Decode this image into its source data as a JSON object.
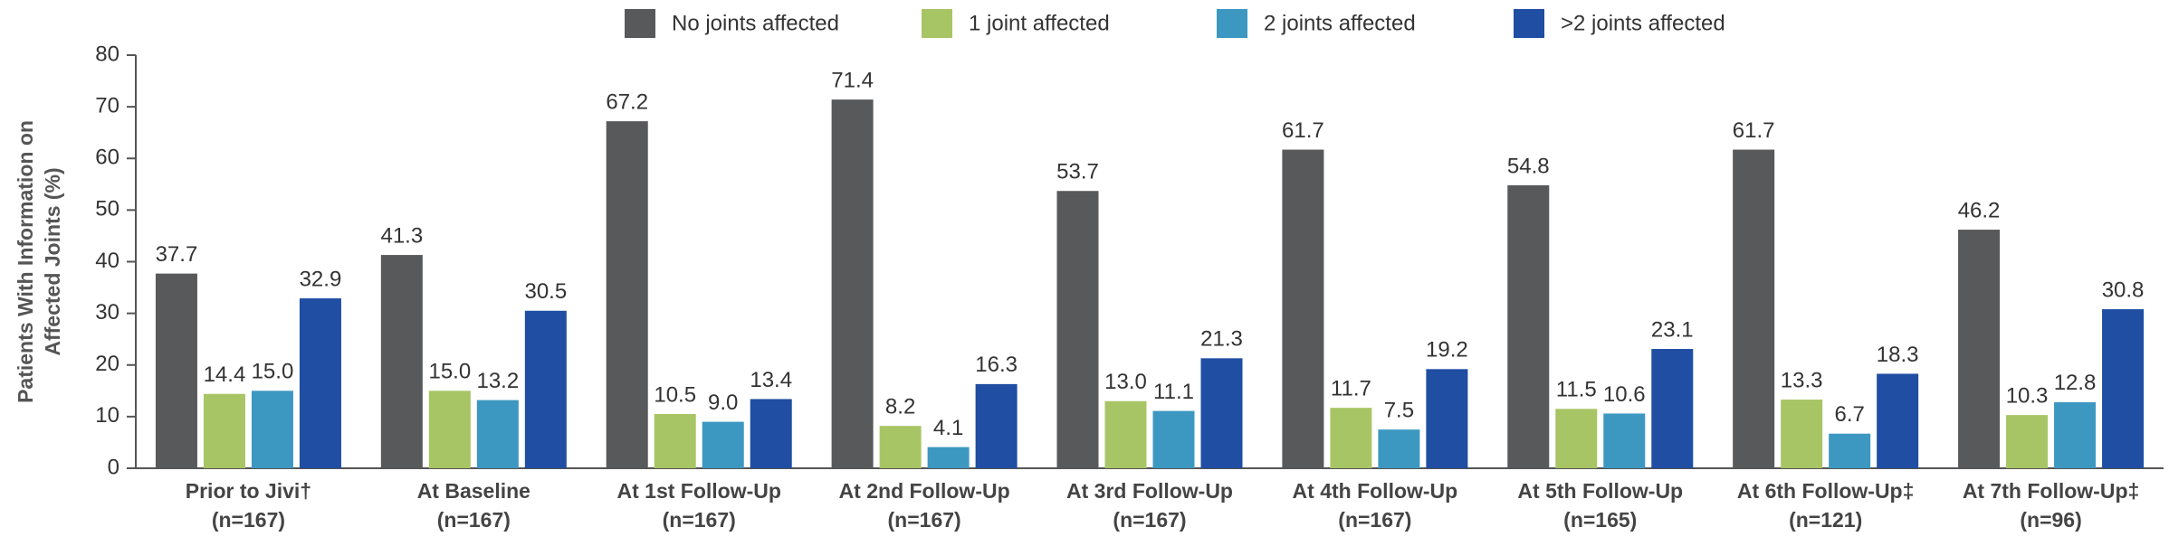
{
  "chart_data": {
    "type": "bar",
    "ylabel": [
      "Patients With Information on",
      "Affected Joints (%)"
    ],
    "categories": [
      [
        "Prior to Jivi†",
        "(n=167)"
      ],
      [
        "At Baseline",
        "(n=167)"
      ],
      [
        "At 1st Follow-Up",
        "(n=167)"
      ],
      [
        "At 2nd Follow-Up",
        "(n=167)"
      ],
      [
        "At 3rd Follow-Up",
        "(n=167)"
      ],
      [
        "At 4th Follow-Up",
        "(n=167)"
      ],
      [
        "At 5th Follow-Up",
        "(n=165)"
      ],
      [
        "At 6th Follow-Up‡",
        "(n=121)"
      ],
      [
        "At 7th Follow-Up‡",
        "(n=96)"
      ]
    ],
    "series": [
      {
        "name": "No joints affected",
        "color": "#58595b",
        "values": [
          37.7,
          41.3,
          67.2,
          71.4,
          53.7,
          61.7,
          54.8,
          61.7,
          46.2
        ],
        "value_labels": [
          "37.7",
          "41.3",
          "67.2",
          "71.4",
          "53.7",
          "61.7",
          "54.8",
          "61.7",
          "46.2"
        ]
      },
      {
        "name": "1 joint affected",
        "color": "#a8c565",
        "values": [
          14.4,
          15.0,
          10.5,
          8.2,
          13.0,
          11.7,
          11.5,
          13.3,
          10.3
        ],
        "value_labels": [
          "14.4",
          "15.0",
          "10.5",
          "8.2",
          "13.0",
          "11.7",
          "11.5",
          "13.3",
          "10.3"
        ]
      },
      {
        "name": "2 joints affected",
        "color": "#3d98c1",
        "values": [
          15.0,
          13.2,
          9.0,
          4.1,
          11.1,
          7.5,
          10.6,
          6.7,
          12.8
        ],
        "value_labels": [
          "15.0",
          "13.2",
          "9.0",
          "4.1",
          "11.1",
          "7.5",
          "10.6",
          "6.7",
          "12.8"
        ]
      },
      {
        "name": ">2 joints affected",
        "color": "#1f4ea3",
        "values": [
          32.9,
          30.5,
          13.4,
          16.3,
          21.3,
          19.2,
          23.1,
          18.3,
          30.8
        ],
        "value_labels": [
          "32.9",
          "30.5",
          "13.4",
          "16.3",
          "21.3",
          "19.2",
          "23.1",
          "18.3",
          "30.8"
        ]
      }
    ],
    "ylim": [
      0,
      80
    ],
    "yticks": [
      0,
      10,
      20,
      30,
      40,
      50,
      60,
      70,
      80
    ],
    "grid": false,
    "legend": "top"
  }
}
